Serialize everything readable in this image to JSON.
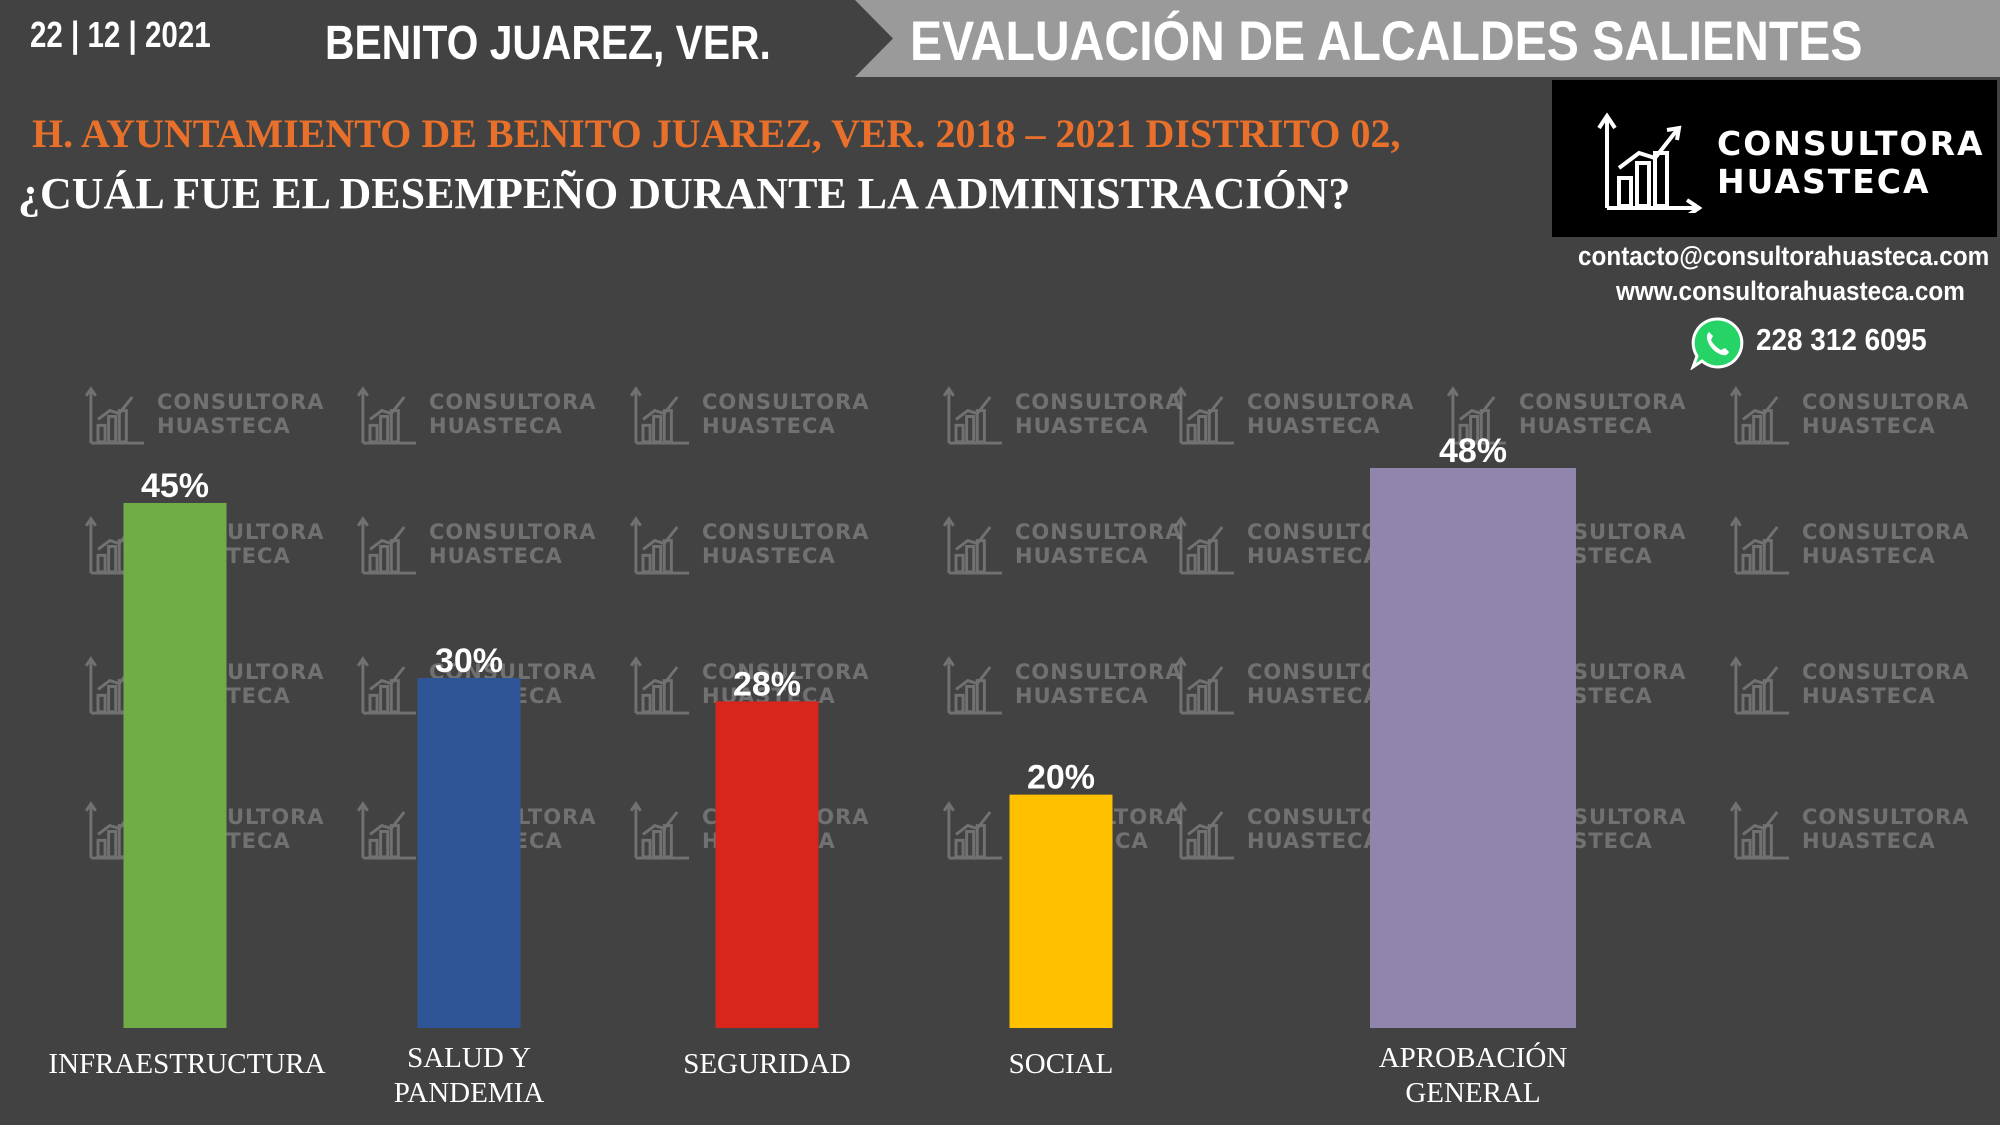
{
  "header": {
    "date": "22 | 12 | 2021",
    "place": "BENITO JUAREZ, VER.",
    "section_title": "EVALUACIÓN DE ALCALDES SALIENTES"
  },
  "subtitle": "H. AYUNTAMIENTO DE BENITO JUAREZ, VER. 2018 – 2021 DISTRITO 02,",
  "question": "¿CUÁL FUE EL DESEMPEÑO DURANTE LA ADMINISTRACIÓN?",
  "logo": {
    "line1": "CONSULTORA",
    "line2": "HUASTECA",
    "icon": "bar-chart-growth-icon"
  },
  "contact": {
    "email": "contacto@consultorahuasteca.com",
    "website": "www.consultorahuasteca.com",
    "phone": "228 312 6095",
    "phone_icon": "whatsapp-icon"
  },
  "watermark": {
    "line1": "CONSULTORA",
    "line2": "HUASTECA"
  },
  "colors": {
    "background": "#424242",
    "subtitle": "#e8702a",
    "header_band": "#9a9a9a"
  },
  "chart_data": {
    "type": "bar",
    "categories": [
      "INFRAESTRUCTURA",
      "SALUD Y\nPANDEMIA",
      "SEGURIDAD",
      "SOCIAL",
      "APROBACIÓN\nGENERAL"
    ],
    "values": [
      45,
      30,
      28,
      20,
      48
    ],
    "value_labels": [
      "45%",
      "30%",
      "28%",
      "20%",
      "48%"
    ],
    "colors": [
      "#70ad47",
      "#2f5597",
      "#d9261c",
      "#ffc000",
      "#9085ac"
    ],
    "unit": "%",
    "ylim": [
      0,
      48
    ],
    "grid": false,
    "title": "",
    "xlabel": "",
    "ylabel": ""
  }
}
